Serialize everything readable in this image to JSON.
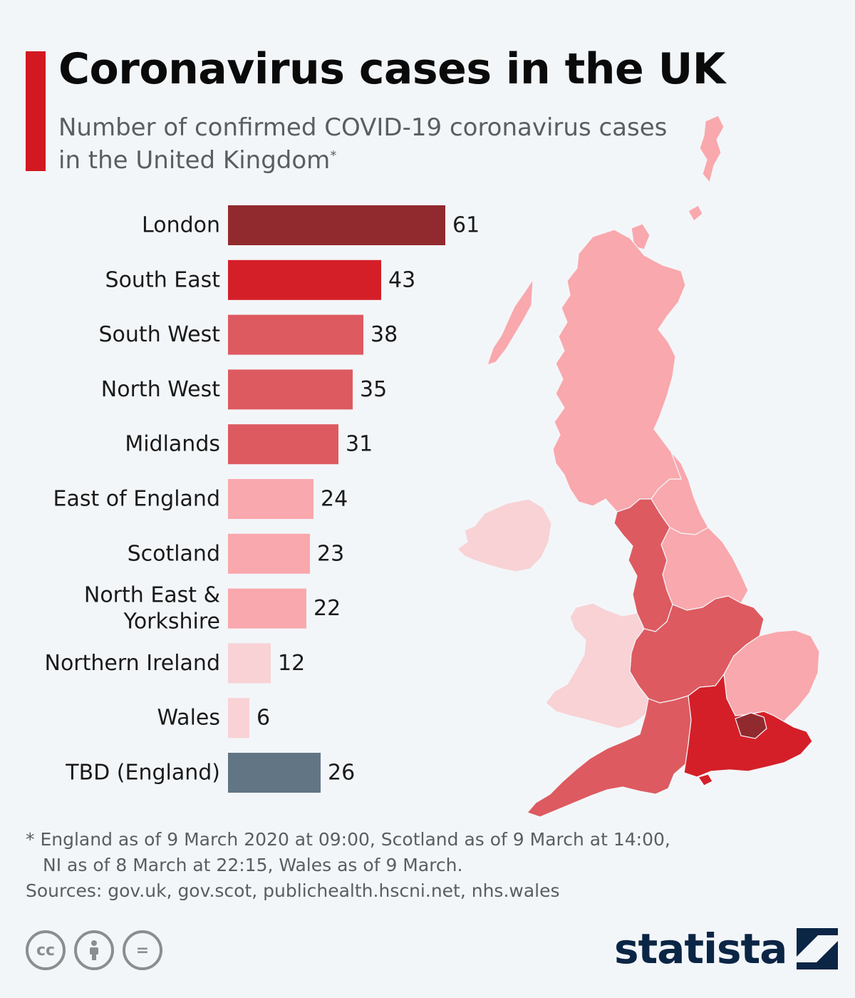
{
  "title": "Coronavirus cases in the UK",
  "subtitle": "Number of confirmed COVID-19 coronavirus cases in the United Kingdom",
  "subtitle_marker": "*",
  "colors": {
    "accent": "#d21820",
    "dark_red": "#912a2e",
    "red": "#d41f28",
    "medium_red": "#dd5a60",
    "light_pink": "#f9a8ad",
    "pale_pink": "#f8d2d5",
    "slate": "#627584",
    "brand_navy": "#0b2545"
  },
  "chart_data": {
    "type": "bar",
    "orientation": "horizontal",
    "categories": [
      "London",
      "South East",
      "South West",
      "North West",
      "Midlands",
      "East of England",
      "Scotland",
      "North East & Yorkshire",
      "Northern Ireland",
      "Wales",
      "TBD (England)"
    ],
    "category_lines": [
      [
        "London"
      ],
      [
        "South East"
      ],
      [
        "South West"
      ],
      [
        "North West"
      ],
      [
        "Midlands"
      ],
      [
        "East of England"
      ],
      [
        "Scotland"
      ],
      [
        "North East &",
        "Yorkshire"
      ],
      [
        "Northern Ireland"
      ],
      [
        "Wales"
      ],
      [
        "TBD (England)"
      ]
    ],
    "values": [
      61,
      43,
      38,
      35,
      31,
      24,
      23,
      22,
      12,
      6,
      26
    ],
    "bar_colors": [
      "#912a2e",
      "#d41f28",
      "#dd5a60",
      "#dd5a60",
      "#dd5a60",
      "#f9a8ad",
      "#f9a8ad",
      "#f9a8ad",
      "#f8d2d5",
      "#f8d2d5",
      "#627584"
    ],
    "xlim": [
      0,
      61
    ],
    "grid": false,
    "legend": "none"
  },
  "footnote": {
    "line1": "* England as of 9 March 2020 at 09:00, Scotland as of 9 March at 14:00,",
    "line2": "NI as of 8 March at 22:15, Wales as of 9 March.",
    "sources": "Sources: gov.uk, gov.scot, publichealth.hscni.net, nhs.wales"
  },
  "license_icons": [
    "cc-icon",
    "attribution-icon",
    "no-derivatives-icon"
  ],
  "license_glyphs": {
    "cc": "cc",
    "equals": "="
  },
  "brand": "statista"
}
